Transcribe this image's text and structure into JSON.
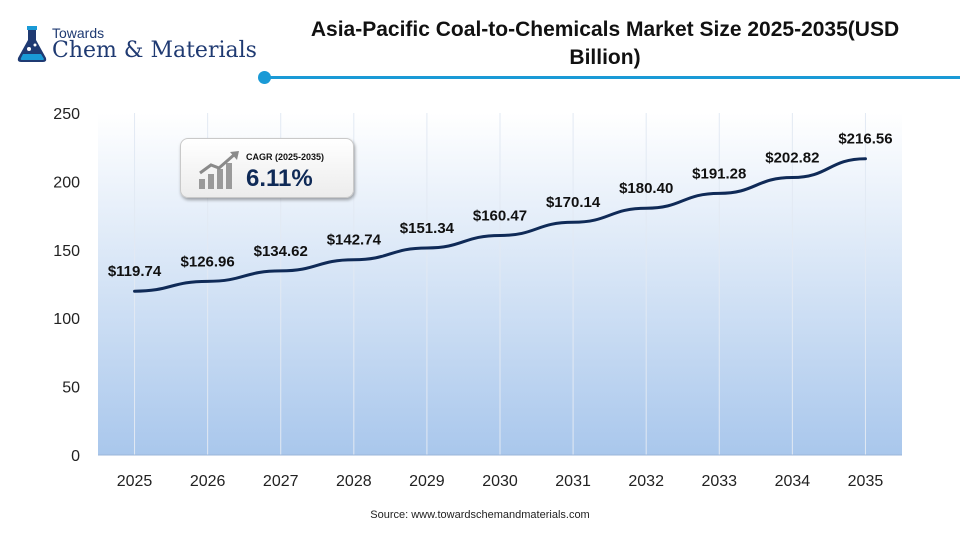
{
  "brand": {
    "line1": "Towards",
    "line2": "Chem & Materials"
  },
  "title": "Asia-Pacific Coal-to-Chemicals Market Size 2025-2035(USD Billion)",
  "cagr": {
    "label": "CAGR (2025-2035)",
    "value": "6.11%"
  },
  "source": "Source: www.towardschemandmaterials.com",
  "colors": {
    "line": "#0f2a57",
    "accent": "#1a9ad6",
    "plot_gradient_top": "#ffffff",
    "plot_gradient_bottom": "#a9c7ec"
  },
  "chart_data": {
    "type": "area",
    "categories": [
      "2025",
      "2026",
      "2027",
      "2028",
      "2029",
      "2030",
      "2031",
      "2032",
      "2033",
      "2034",
      "2035"
    ],
    "values": [
      119.74,
      126.96,
      134.62,
      142.74,
      151.34,
      160.47,
      170.14,
      180.4,
      191.28,
      202.82,
      216.56
    ],
    "data_labels": [
      "$119.74",
      "$126.96",
      "$134.62",
      "$142.74",
      "$151.34",
      "$160.47",
      "$170.14",
      "$180.40",
      "$191.28",
      "$202.82",
      "$216.56"
    ],
    "ylim": [
      0,
      250
    ],
    "yticks": [
      0,
      50,
      100,
      150,
      200,
      250
    ],
    "grid": "vertical",
    "legend": "none"
  }
}
